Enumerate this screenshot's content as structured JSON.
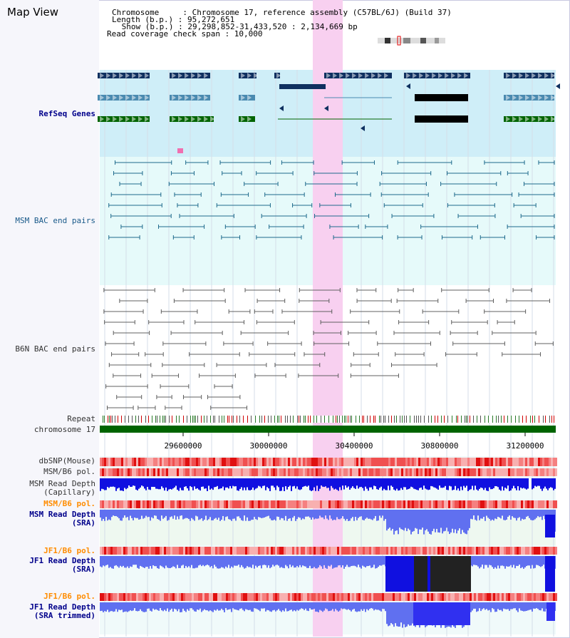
{
  "view": {
    "title": "Map View",
    "chromosome_line": "Chromosome     : Chromosome 17, reference assembly (C57BL/6J) (Build 37)",
    "length_line": "Length (b.p.) : 95,272,651",
    "show_line": " Show (b.p.) : 29,298,852-31,433,520 : 2,134,669 bp",
    "coverage_line": "Read coverage check span : 10,000"
  },
  "tracks": {
    "refseq": "RefSeq Genes",
    "msm_bac": "MSM BAC end pairs",
    "b6n_bac": "B6N BAC end pairs",
    "repeat": "Repeat",
    "chromosome": "chromosome 17",
    "dbsnp": "dbSNP(Mouse)",
    "msm_pol": "MSM/B6 pol.",
    "msm_cap_1": "MSM Read Depth",
    "msm_cap_2": "(Capillary)",
    "msm_pol_sra": "MSM/B6 pol.",
    "msm_sra_1": "MSM Read Depth",
    "msm_sra_2": "(SRA)",
    "jf1_pol": "JF1/B6 pol.",
    "jf1_sra_1": "JF1 Read Depth",
    "jf1_sra_2": "(SRA)",
    "jf1_pol_trim": "JF1/B6 pol.",
    "jf1_trim_1": "JF1 Read Depth",
    "jf1_trim_2": "(SRA trimmed)"
  },
  "axis": {
    "ticks": [
      "29600000",
      "30000000",
      "30400000",
      "30800000",
      "31200000"
    ]
  },
  "colors": {
    "highlight": "#f8d0f0",
    "refseq_bg": "#cfeef8",
    "msm_bg": "#e6fafa",
    "gene_navy": "#0f3060",
    "gene_steel": "#4a8ab0",
    "gene_green": "#006400",
    "chrom_bar": "#006400",
    "depth_blue": "#1010e0",
    "depth_light": "#6070f0"
  }
}
